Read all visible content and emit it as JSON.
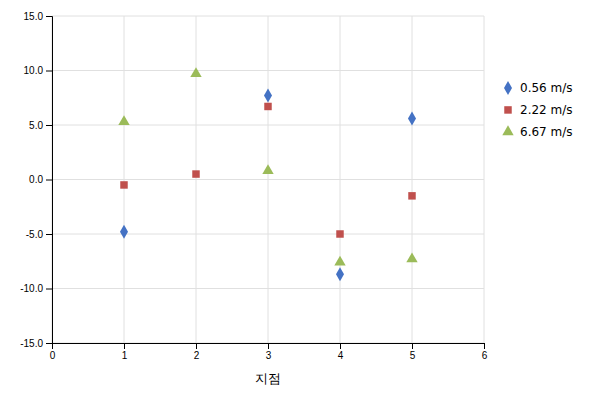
{
  "chart_data": {
    "type": "scatter",
    "x_label": "지점",
    "x": [
      1,
      2,
      3,
      4,
      5
    ],
    "series": [
      {
        "name": "0.56 m/s",
        "color": "#4472C4",
        "marker": "diamond",
        "values": [
          -4.8,
          null,
          7.7,
          -8.7,
          5.6
        ]
      },
      {
        "name": "2.22 m/s",
        "color": "#C0504D",
        "marker": "square",
        "values": [
          -0.5,
          0.5,
          6.7,
          -5.0,
          -1.5
        ]
      },
      {
        "name": "6.67 m/s",
        "color": "#9BBB59",
        "marker": "triangle",
        "values": [
          5.3,
          9.7,
          0.8,
          -7.6,
          -7.3
        ]
      }
    ],
    "xlim": [
      0,
      6
    ],
    "xticks": [
      0,
      1,
      2,
      3,
      4,
      5,
      6
    ],
    "ylim": [
      -15.0,
      15.0
    ],
    "yticks": [
      {
        "value": -15.0,
        "label": "-15.0"
      },
      {
        "value": -10.0,
        "label": "-10.0"
      },
      {
        "value": -5.0,
        "label": "-5.0"
      },
      {
        "value": 0.0,
        "label": "0.0"
      },
      {
        "value": 5.0,
        "label": "5.0"
      },
      {
        "value": 10.0,
        "label": "10.0"
      },
      {
        "value": 15.0,
        "label": "15.0"
      }
    ],
    "grid": true,
    "legend": "right"
  }
}
